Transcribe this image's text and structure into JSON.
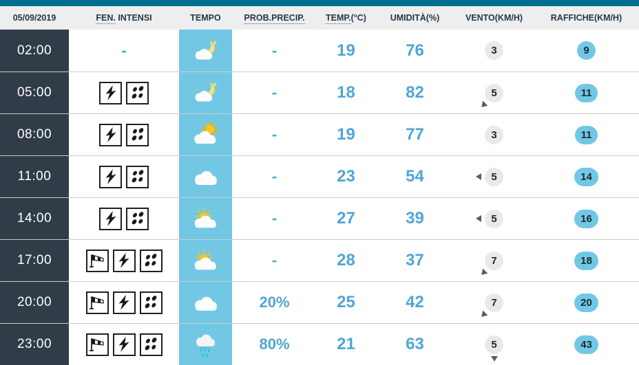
{
  "colors": {
    "top_accent": "#00708e",
    "cyan": "#72c8e4",
    "blue_text": "#4fa6d6",
    "time_column_bg": "#313c49",
    "header_bg": "#eeeeee",
    "header_text": "#25364a",
    "wind_pill_bg": "#e9e9e9",
    "rain_drop": "#35c3de"
  },
  "header": {
    "date": "05/09/2019",
    "columns": {
      "fen": {
        "abbr": "FEN.",
        "rest": " INTENSI"
      },
      "tempo": {
        "label": "TEMPO"
      },
      "prob": {
        "abbr": "PROB.PRECIP.",
        "rest": ""
      },
      "temp": {
        "abbr": "TEMP.",
        "rest": "(°C)"
      },
      "humidity": {
        "label": "UMIDITÀ(%)"
      },
      "wind": {
        "label": "VENTO(KM/H)"
      },
      "gusts": {
        "label": "RAFFICHE(KM/H)"
      }
    }
  },
  "rows": [
    {
      "time": "02:00",
      "fen_icons": [],
      "fen_placeholder": "-",
      "weather_icon": "moon-cloud",
      "prob": "-",
      "temp": "19",
      "humidity": "76",
      "wind": "3",
      "wind_dir": null,
      "gusts": "9"
    },
    {
      "time": "05:00",
      "fen_icons": [
        "lightning",
        "rain"
      ],
      "fen_placeholder": "",
      "weather_icon": "moon-cloud",
      "prob": "-",
      "temp": "18",
      "humidity": "82",
      "wind": "5",
      "wind_dir": "sw",
      "gusts": "11"
    },
    {
      "time": "08:00",
      "fen_icons": [
        "lightning",
        "rain"
      ],
      "fen_placeholder": "",
      "weather_icon": "sun-cloud",
      "prob": "-",
      "temp": "19",
      "humidity": "77",
      "wind": "3",
      "wind_dir": null,
      "gusts": "11"
    },
    {
      "time": "11:00",
      "fen_icons": [
        "lightning",
        "rain"
      ],
      "fen_placeholder": "",
      "weather_icon": "cloud",
      "prob": "-",
      "temp": "23",
      "humidity": "54",
      "wind": "5",
      "wind_dir": "w",
      "gusts": "14"
    },
    {
      "time": "14:00",
      "fen_icons": [
        "lightning",
        "rain"
      ],
      "fen_placeholder": "",
      "weather_icon": "cloud-sun",
      "prob": "-",
      "temp": "27",
      "humidity": "39",
      "wind": "5",
      "wind_dir": "w",
      "gusts": "16"
    },
    {
      "time": "17:00",
      "fen_icons": [
        "windsock",
        "lightning",
        "rain"
      ],
      "fen_placeholder": "",
      "weather_icon": "cloud-sun",
      "prob": "-",
      "temp": "28",
      "humidity": "37",
      "wind": "7",
      "wind_dir": "sw",
      "gusts": "18"
    },
    {
      "time": "20:00",
      "fen_icons": [
        "windsock",
        "lightning",
        "rain"
      ],
      "fen_placeholder": "",
      "weather_icon": "cloud",
      "prob": "20%",
      "temp": "25",
      "humidity": "42",
      "wind": "7",
      "wind_dir": "sw",
      "gusts": "20"
    },
    {
      "time": "23:00",
      "fen_icons": [
        "windsock",
        "lightning",
        "rain"
      ],
      "fen_placeholder": "",
      "weather_icon": "rain-cloud",
      "prob": "80%",
      "temp": "21",
      "humidity": "63",
      "wind": "5",
      "wind_dir": "s",
      "gusts": "43"
    }
  ]
}
